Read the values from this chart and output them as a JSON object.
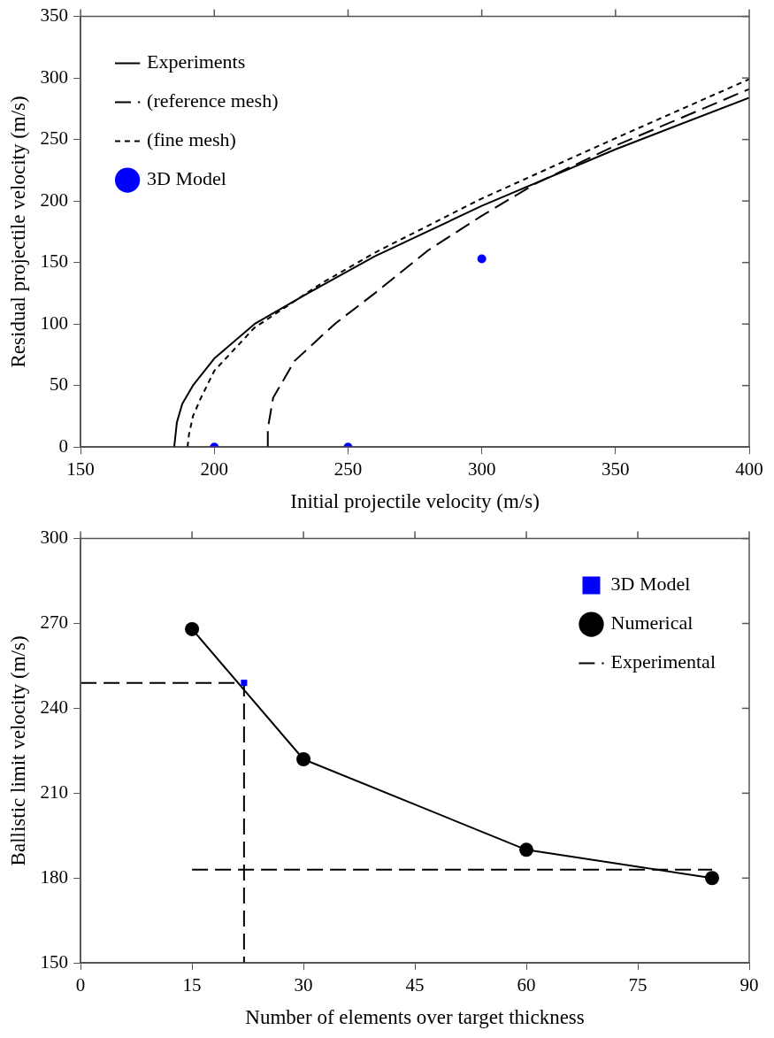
{
  "chart_data": [
    {
      "type": "line",
      "xlabel": "Initial projectile velocity (m/s)",
      "ylabel": "Residual projectile velocity (m/s)",
      "xlim": [
        150,
        400
      ],
      "ylim": [
        0,
        350
      ],
      "xticks": [
        150,
        200,
        250,
        300,
        350,
        400
      ],
      "yticks": [
        0,
        50,
        100,
        150,
        200,
        250,
        300,
        350
      ],
      "grid": false,
      "legend": "top left",
      "series": [
        {
          "name": "Experiments",
          "color": "#000000",
          "line_style": "solid",
          "marker": "none",
          "x": [
            185,
            185.5,
            186,
            188,
            192,
            200,
            215,
            235,
            260,
            300,
            350,
            400
          ],
          "values": [
            0,
            10,
            20,
            35,
            50,
            72,
            100,
            125,
            155,
            196,
            242,
            284
          ]
        },
        {
          "name": "(reference mesh)",
          "color": "#000000",
          "line_style": "dashed",
          "marker": "none",
          "x": [
            220,
            220,
            222,
            230,
            245,
            260,
            280,
            300,
            320,
            350,
            400
          ],
          "values": [
            0,
            15,
            40,
            70,
            100,
            125,
            160,
            188,
            214,
            245,
            291
          ]
        },
        {
          "name": "(fine mesh)",
          "color": "#000000",
          "line_style": "dotted",
          "marker": "none",
          "x": [
            190,
            190.5,
            192,
            195,
            200,
            215,
            240,
            260,
            300,
            350,
            400
          ],
          "values": [
            0,
            10,
            25,
            40,
            62,
            97,
            133,
            158,
            202,
            251,
            299
          ]
        },
        {
          "name": "3D Model",
          "type": "scatter",
          "color": "#0000ff",
          "marker": "circle",
          "x": [
            200,
            250,
            300
          ],
          "values": [
            0,
            0,
            153
          ]
        }
      ]
    },
    {
      "type": "line",
      "xlabel": "Number of elements over target thickness",
      "ylabel": "Ballistic limit velocity (m/s)",
      "xlim": [
        0,
        90
      ],
      "ylim": [
        150,
        300
      ],
      "xticks": [
        0,
        15,
        30,
        45,
        60,
        75,
        90
      ],
      "yticks": [
        150,
        180,
        210,
        240,
        270,
        300
      ],
      "grid": false,
      "legend": "top right",
      "series": [
        {
          "name": "3D Model",
          "type": "scatter",
          "color": "#0000ff",
          "marker": "square",
          "x": [
            22
          ],
          "values": [
            249
          ]
        },
        {
          "name": "Numerical",
          "color": "#000000",
          "line_style": "solid",
          "marker": "circle",
          "x": [
            15,
            30,
            60,
            85
          ],
          "values": [
            268,
            222,
            190,
            180
          ]
        },
        {
          "name": "Experimental",
          "color": "#000000",
          "line_style": "dashed",
          "marker": "none",
          "x": [
            0,
            22,
            22
          ],
          "values": [
            249,
            249,
            150
          ]
        },
        {
          "color": "#000000",
          "line_style": "dashed",
          "marker": "none",
          "x": [
            15,
            85
          ],
          "values": [
            183,
            183
          ]
        }
      ]
    }
  ]
}
